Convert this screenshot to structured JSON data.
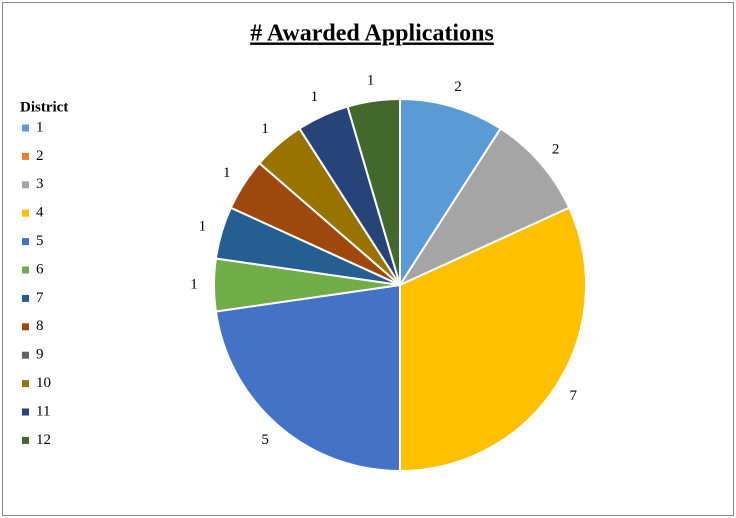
{
  "chart_data": {
    "type": "pie",
    "title": "# Awarded Applications",
    "legend_title": "District",
    "categories": [
      "1",
      "2",
      "3",
      "4",
      "5",
      "6",
      "7",
      "8",
      "9",
      "10",
      "11",
      "12"
    ],
    "values": [
      2,
      0,
      2,
      7,
      5,
      1,
      1,
      1,
      0,
      1,
      1,
      1
    ],
    "colors": [
      "#5b9bd5",
      "#ed7d31",
      "#a5a5a5",
      "#ffc000",
      "#4472c4",
      "#70ad47",
      "#255e91",
      "#9e480e",
      "#636363",
      "#997300",
      "#264478",
      "#43682b"
    ],
    "legend": "left"
  }
}
